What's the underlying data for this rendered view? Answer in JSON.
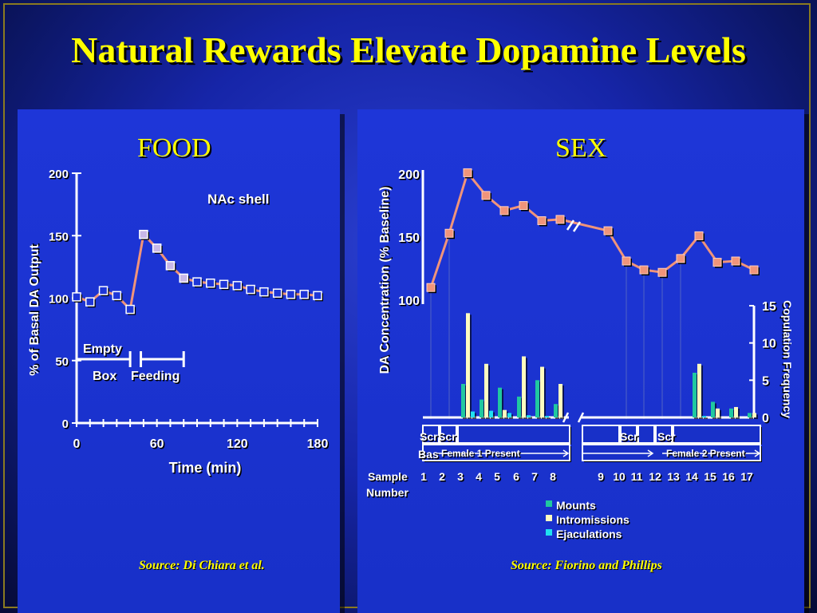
{
  "slide": {
    "title": "Natural Rewards Elevate Dopamine Levels"
  },
  "colors": {
    "title": "#ffff00",
    "series_line": "#f0947a",
    "food_marker_fill": "#c8b8e8",
    "mounts": "#20c8a0",
    "intromissions": "#fffcc0",
    "ejaculations": "#20e0f0"
  },
  "food": {
    "panel_title": "FOOD",
    "source": "Source: Di Chiara et al.",
    "annotation": "NAc shell",
    "empty_label": "Empty",
    "box_label": "Box",
    "feeding_label": "Feeding"
  },
  "sex": {
    "panel_title": "SEX",
    "source": "Source: Fiorino and Phillips",
    "sample_label_1": "Sample",
    "sample_label_2": "Number",
    "phase_labels": [
      "Scr",
      "Scr",
      "Bas",
      "Female 1 Present",
      "Scr",
      "Scr",
      "Female 2 Present"
    ]
  },
  "chart_data": [
    {
      "id": "food",
      "type": "line",
      "title": "",
      "xlabel": "Time (min)",
      "ylabel": "% of Basal DA Output",
      "xlim": [
        0,
        180
      ],
      "ylim": [
        0,
        200
      ],
      "xticks": [
        "0",
        "60",
        "120",
        "180"
      ],
      "yticks": [
        "0",
        "50",
        "100",
        "150",
        "200"
      ],
      "series": [
        {
          "x": [
            0,
            10,
            20,
            30,
            40,
            50,
            60,
            70,
            80,
            90,
            100,
            110,
            120,
            130,
            140,
            150,
            160,
            170,
            180
          ],
          "values": [
            101,
            97,
            106,
            102,
            91,
            151,
            140,
            126,
            116,
            113,
            112,
            111,
            110,
            107,
            105,
            104,
            103,
            103,
            102
          ]
        }
      ]
    },
    {
      "id": "sex-da",
      "type": "line",
      "title": "",
      "xlabel": "",
      "ylabel": "DA Concentration (% Baseline)",
      "ylim": [
        100,
        200
      ],
      "yticks": [
        "100",
        "150",
        "200"
      ],
      "categories": [
        "1",
        "2",
        "3",
        "4",
        "5",
        "6",
        "7",
        "8",
        "9",
        "10",
        "11",
        "12",
        "13",
        "14",
        "15",
        "16",
        "17"
      ],
      "series": [
        {
          "values": [
            110,
            153,
            201,
            183,
            171,
            175,
            163,
            164,
            155,
            131,
            124,
            122,
            133,
            151,
            130,
            131,
            124
          ]
        }
      ]
    },
    {
      "id": "sex-copulation",
      "type": "bar",
      "title": "",
      "xlabel": "",
      "ylabel": "Copulation Frequency",
      "ylim": [
        0,
        15
      ],
      "yticks": [
        "0",
        "5",
        "10",
        "15"
      ],
      "categories": [
        "1",
        "2",
        "3",
        "4",
        "5",
        "6",
        "7",
        "8",
        "9",
        "10",
        "11",
        "12",
        "13",
        "14",
        "15",
        "16",
        "17"
      ],
      "series": [
        {
          "name": "Mounts",
          "values": [
            0,
            0,
            4.5,
            2.4,
            4,
            2.8,
            5,
            1.8,
            0,
            0,
            0,
            0,
            0,
            6,
            2.1,
            1.2,
            0.6
          ]
        },
        {
          "name": "Intromissions",
          "values": [
            0,
            0,
            14,
            7.2,
            1,
            8.2,
            6.8,
            4.5,
            0,
            0,
            0,
            0,
            0,
            7.2,
            1.2,
            1.4,
            0.6
          ]
        },
        {
          "name": "Ejaculations",
          "values": [
            0,
            0,
            0.8,
            0.9,
            0.6,
            0.3,
            0.2,
            0,
            0,
            0,
            0,
            0,
            0,
            0.2,
            0,
            0,
            0
          ]
        }
      ],
      "legend": "bottom"
    }
  ]
}
